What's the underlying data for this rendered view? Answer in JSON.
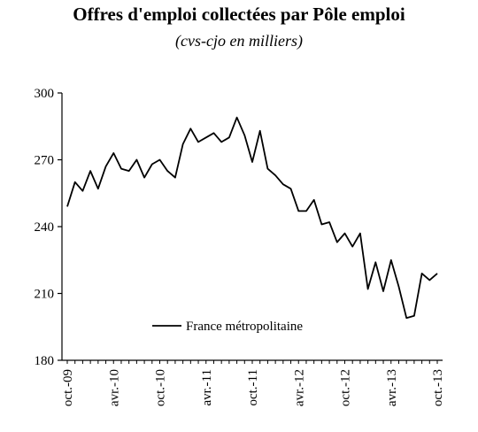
{
  "chart_data": {
    "type": "line",
    "title": "Offres d'emploi collectées par Pôle emploi",
    "subtitle": "(cvs-cjo en milliers)",
    "xlabel": "",
    "ylabel": "",
    "ylim": [
      180,
      300
    ],
    "yticks": [
      180,
      210,
      240,
      270,
      300
    ],
    "x_tick_labels": [
      "oct.-09",
      "avr.-10",
      "oct.-10",
      "avr.-11",
      "oct.-11",
      "avr.-12",
      "oct.-12",
      "avr.-13",
      "oct.-13"
    ],
    "x_tick_index": [
      0,
      6,
      12,
      18,
      24,
      30,
      36,
      42,
      48
    ],
    "grid": false,
    "legend_position": "bottom-left",
    "series": [
      {
        "name": "France métropolitaine",
        "color": "#000000",
        "values": [
          249,
          260,
          256,
          265,
          257,
          267,
          273,
          266,
          265,
          270,
          262,
          268,
          270,
          265,
          262,
          277,
          284,
          278,
          280,
          282,
          278,
          280,
          289,
          281,
          269,
          283,
          266,
          263,
          259,
          257,
          247,
          247,
          252,
          241,
          242,
          233,
          237,
          231,
          237,
          212,
          224,
          211,
          225,
          213,
          199,
          200,
          219,
          216,
          219
        ]
      }
    ]
  }
}
